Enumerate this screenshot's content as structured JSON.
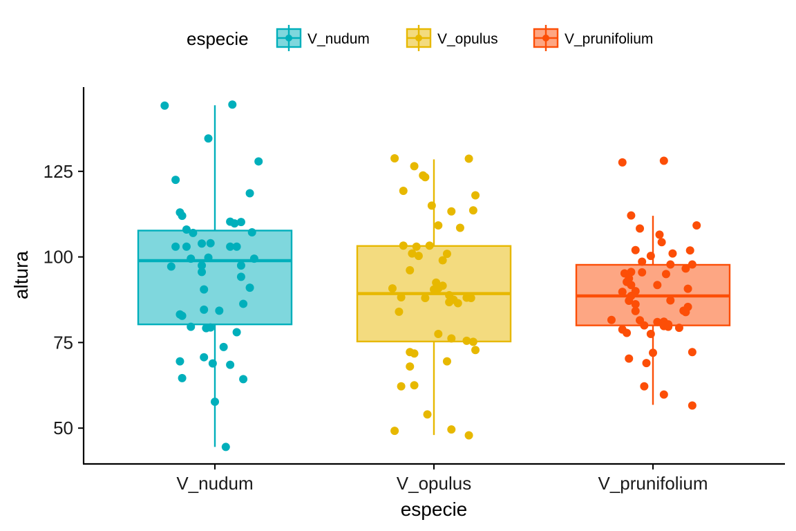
{
  "chart_data": {
    "type": "box",
    "xlabel": "especie",
    "ylabel": "altura",
    "legend": {
      "title": "especie",
      "position": "top"
    },
    "ylim": [
      40,
      150
    ],
    "yticks": [
      50,
      75,
      100,
      125
    ],
    "grid": false,
    "series": [
      {
        "name": "V_nudum",
        "color": "#00AFBB",
        "box": {
          "min": 44.5,
          "q1": 80.3,
          "median": 98.9,
          "q3": 107.7,
          "max": 144.3
        },
        "points": [
          [
            -0.23,
            144.2
          ],
          [
            0.08,
            144.5
          ],
          [
            -0.03,
            134.6
          ],
          [
            0.2,
            127.9
          ],
          [
            -0.18,
            122.5
          ],
          [
            0.16,
            118.6
          ],
          [
            -0.16,
            113.0
          ],
          [
            -0.15,
            112.0
          ],
          [
            0.07,
            110.3
          ],
          [
            0.12,
            110.2
          ],
          [
            0.09,
            109.8
          ],
          [
            -0.13,
            108.0
          ],
          [
            -0.1,
            107.0
          ],
          [
            0.17,
            107.2
          ],
          [
            -0.02,
            104.0
          ],
          [
            -0.06,
            103.9
          ],
          [
            -0.18,
            103.0
          ],
          [
            -0.13,
            103.0
          ],
          [
            0.07,
            103.0
          ],
          [
            0.1,
            103.0
          ],
          [
            -0.03,
            99.8
          ],
          [
            -0.11,
            99.5
          ],
          [
            0.18,
            99.5
          ],
          [
            -0.06,
            97.5
          ],
          [
            0.12,
            97.5
          ],
          [
            -0.2,
            97.2
          ],
          [
            -0.06,
            95.6
          ],
          [
            0.12,
            94.2
          ],
          [
            0.16,
            91.0
          ],
          [
            -0.05,
            90.5
          ],
          [
            0.13,
            86.3
          ],
          [
            -0.05,
            84.6
          ],
          [
            0.02,
            84.3
          ],
          [
            -0.16,
            83.2
          ],
          [
            -0.15,
            82.8
          ],
          [
            -0.11,
            79.6
          ],
          [
            -0.04,
            79.2
          ],
          [
            -0.02,
            79.4
          ],
          [
            0.1,
            78.0
          ],
          [
            0.04,
            73.7
          ],
          [
            -0.05,
            70.7
          ],
          [
            -0.01,
            68.9
          ],
          [
            0.07,
            68.5
          ],
          [
            -0.16,
            69.5
          ],
          [
            0.13,
            64.3
          ],
          [
            -0.15,
            64.6
          ],
          [
            0.0,
            57.7
          ],
          [
            0.05,
            44.5
          ]
        ]
      },
      {
        "name": "V_opulus",
        "color": "#E7B800",
        "box": {
          "min": 48.0,
          "q1": 75.3,
          "median": 89.3,
          "q3": 103.2,
          "max": 128.5
        },
        "points": [
          [
            -0.18,
            128.8
          ],
          [
            0.16,
            128.7
          ],
          [
            -0.09,
            126.5
          ],
          [
            -0.05,
            123.8
          ],
          [
            -0.04,
            123.3
          ],
          [
            -0.14,
            119.3
          ],
          [
            0.19,
            118.0
          ],
          [
            0.18,
            113.6
          ],
          [
            -0.01,
            115.0
          ],
          [
            0.08,
            113.3
          ],
          [
            0.02,
            109.2
          ],
          [
            0.12,
            108.5
          ],
          [
            -0.14,
            103.3
          ],
          [
            -0.08,
            103.0
          ],
          [
            -0.02,
            103.3
          ],
          [
            0.06,
            100.9
          ],
          [
            -0.1,
            101.0
          ],
          [
            -0.07,
            100.3
          ],
          [
            0.04,
            99.0
          ],
          [
            -0.11,
            96.1
          ],
          [
            0.01,
            92.5
          ],
          [
            0.04,
            91.6
          ],
          [
            -0.19,
            90.8
          ],
          [
            0.0,
            90.5
          ],
          [
            0.02,
            90.8
          ],
          [
            -0.15,
            88.2
          ],
          [
            -0.04,
            88.0
          ],
          [
            0.07,
            88.8
          ],
          [
            0.15,
            88.1
          ],
          [
            0.17,
            88.0
          ],
          [
            0.09,
            87.5
          ],
          [
            0.07,
            86.8
          ],
          [
            0.11,
            86.5
          ],
          [
            -0.16,
            84.0
          ],
          [
            0.02,
            77.5
          ],
          [
            0.08,
            76.2
          ],
          [
            0.15,
            75.5
          ],
          [
            0.18,
            75.2
          ],
          [
            0.19,
            72.8
          ],
          [
            -0.11,
            72.2
          ],
          [
            -0.09,
            71.8
          ],
          [
            0.06,
            69.5
          ],
          [
            -0.11,
            68.0
          ],
          [
            -0.09,
            62.5
          ],
          [
            -0.15,
            62.2
          ],
          [
            -0.03,
            54.0
          ],
          [
            0.08,
            49.6
          ],
          [
            -0.18,
            49.2
          ],
          [
            0.16,
            47.9
          ]
        ]
      },
      {
        "name": "V_prunifolium",
        "color": "#FC4E07",
        "box": {
          "min": 56.8,
          "q1": 80.0,
          "median": 88.6,
          "q3": 97.7,
          "max": 112.0
        },
        "points": [
          [
            -0.14,
            127.6
          ],
          [
            0.05,
            128.1
          ],
          [
            -0.1,
            112.1
          ],
          [
            0.2,
            109.2
          ],
          [
            -0.06,
            108.3
          ],
          [
            0.03,
            106.5
          ],
          [
            0.04,
            104.3
          ],
          [
            0.17,
            101.9
          ],
          [
            -0.08,
            102.0
          ],
          [
            0.09,
            101.0
          ],
          [
            -0.01,
            100.3
          ],
          [
            -0.05,
            98.6
          ],
          [
            0.08,
            97.8
          ],
          [
            0.18,
            97.8
          ],
          [
            0.15,
            96.6
          ],
          [
            -0.1,
            95.6
          ],
          [
            -0.13,
            95.2
          ],
          [
            -0.05,
            95.5
          ],
          [
            0.06,
            95.0
          ],
          [
            -0.11,
            93.7
          ],
          [
            -0.12,
            92.7
          ],
          [
            -0.1,
            91.8
          ],
          [
            0.02,
            91.8
          ],
          [
            0.16,
            90.7
          ],
          [
            -0.08,
            90.0
          ],
          [
            -0.14,
            89.8
          ],
          [
            -0.1,
            88.6
          ],
          [
            0.08,
            87.3
          ],
          [
            -0.11,
            87.2
          ],
          [
            -0.08,
            86.2
          ],
          [
            0.16,
            85.4
          ],
          [
            0.14,
            84.3
          ],
          [
            -0.08,
            84.2
          ],
          [
            0.15,
            83.9
          ],
          [
            -0.06,
            81.5
          ],
          [
            -0.19,
            81.6
          ],
          [
            0.02,
            81.0
          ],
          [
            0.05,
            81.1
          ],
          [
            0.07,
            80.3
          ],
          [
            -0.04,
            80.0
          ],
          [
            0.05,
            79.8
          ],
          [
            0.07,
            79.6
          ],
          [
            0.12,
            79.3
          ],
          [
            -0.14,
            78.8
          ],
          [
            -0.12,
            77.8
          ],
          [
            -0.01,
            77.5
          ],
          [
            0.0,
            72.0
          ],
          [
            0.18,
            72.2
          ],
          [
            -0.11,
            70.3
          ],
          [
            -0.03,
            69.0
          ],
          [
            -0.04,
            62.2
          ],
          [
            0.05,
            59.8
          ],
          [
            0.18,
            56.6
          ]
        ]
      }
    ]
  }
}
